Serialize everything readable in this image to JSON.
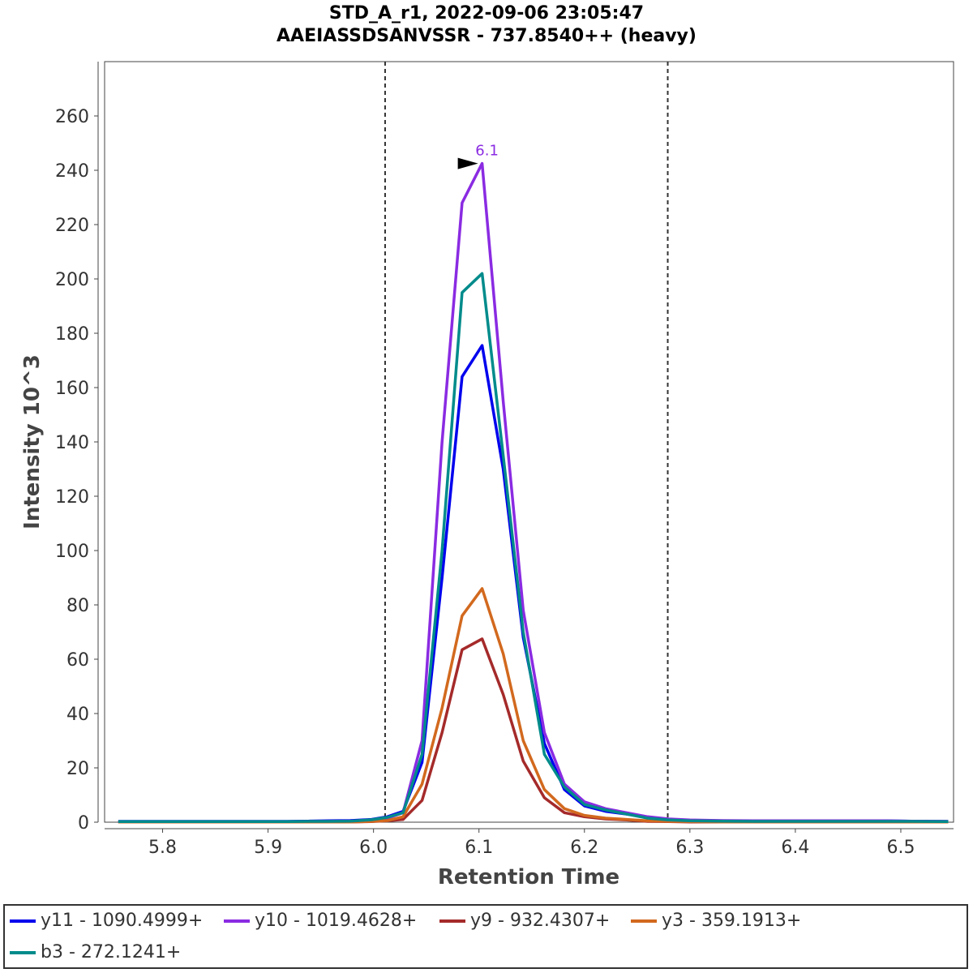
{
  "chart_data": {
    "type": "line",
    "title": "STD_A_r1, 2022-09-06 23:05:47",
    "subtitle": "AAEIASSDSANVSSR - 737.8540++ (heavy)",
    "xlabel": "Retention Time",
    "ylabel": "Intensity 10^3",
    "xlim": [
      5.745,
      6.55
    ],
    "ylim": [
      0,
      280
    ],
    "x_ticks": [
      "5.8",
      "5.9",
      "6.0",
      "6.1",
      "6.2",
      "6.3",
      "6.4",
      "6.5"
    ],
    "y_ticks": [
      "0",
      "20",
      "40",
      "60",
      "80",
      "100",
      "120",
      "140",
      "160",
      "180",
      "200",
      "220",
      "240",
      "260"
    ],
    "boundaries": [
      6.011,
      6.279
    ],
    "peak_annotation": {
      "label": "6.1",
      "x": 6.103,
      "y": 242.5
    },
    "x": [
      5.758,
      5.778,
      5.798,
      5.818,
      5.838,
      5.858,
      5.878,
      5.898,
      5.918,
      5.938,
      5.958,
      5.978,
      5.998,
      6.013,
      6.028,
      6.046,
      6.065,
      6.084,
      6.103,
      6.123,
      6.142,
      6.162,
      6.181,
      6.2,
      6.22,
      6.24,
      6.26,
      6.28,
      6.3,
      6.33,
      6.36,
      6.39,
      6.42,
      6.45,
      6.48,
      6.51,
      6.545
    ],
    "series": [
      {
        "name": "y11 - 1090.4999+",
        "color": "#0000ee",
        "values": [
          0.3,
          0.3,
          0.3,
          0.3,
          0.3,
          0.3,
          0.3,
          0.3,
          0.3,
          0.4,
          0.5,
          0.6,
          1.0,
          2.0,
          4.0,
          22,
          90,
          164,
          175.5,
          130,
          68,
          29,
          12,
          6,
          4,
          3,
          1.8,
          1.0,
          0.7,
          0.5,
          0.4,
          0.4,
          0.4,
          0.5,
          0.5,
          0.4,
          0.3
        ]
      },
      {
        "name": "y10 - 1019.4628+",
        "color": "#8a2be2",
        "values": [
          0.2,
          0.2,
          0.2,
          0.2,
          0.2,
          0.2,
          0.2,
          0.2,
          0.2,
          0.3,
          0.3,
          0.4,
          0.8,
          1.5,
          3.5,
          30,
          140,
          228,
          242.5,
          155,
          78,
          33,
          14,
          7.5,
          5,
          3.5,
          2,
          1.2,
          0.8,
          0.6,
          0.5,
          0.5,
          0.5,
          0.5,
          0.5,
          0.4,
          0.3
        ]
      },
      {
        "name": "y9 - 932.4307+",
        "color": "#a52a2a",
        "values": [
          0.1,
          0.1,
          0.1,
          0.1,
          0.1,
          0.1,
          0.1,
          0.1,
          0.1,
          0.1,
          0.1,
          0.1,
          0.2,
          0.5,
          1.0,
          8,
          33,
          63.5,
          67.5,
          47,
          22.5,
          9,
          3.5,
          2,
          1.2,
          0.8,
          0.3,
          0.2,
          0.1,
          0.1,
          0.1,
          0.1,
          0.1,
          0.1,
          0.1,
          0.1,
          0.1
        ]
      },
      {
        "name": "y3 - 359.1913+",
        "color": "#d2691e",
        "values": [
          0.1,
          0.1,
          0.1,
          0.1,
          0.1,
          0.1,
          0.1,
          0.1,
          0.1,
          0.1,
          0.1,
          0.1,
          0.3,
          0.6,
          2.0,
          14,
          42,
          76,
          86,
          62,
          30,
          12,
          5,
          2.5,
          1.5,
          1.0,
          0.5,
          0.3,
          0.2,
          0.1,
          0.1,
          0.1,
          0.1,
          0.1,
          0.1,
          0.1,
          0.1
        ]
      },
      {
        "name": "b3 - 272.1241+",
        "color": "#008b8b",
        "values": [
          0.2,
          0.2,
          0.2,
          0.2,
          0.2,
          0.2,
          0.2,
          0.2,
          0.2,
          0.3,
          0.3,
          0.4,
          0.9,
          1.8,
          3.5,
          25,
          100,
          195,
          202,
          135,
          70,
          25,
          13,
          6.5,
          4.5,
          3,
          1.5,
          0.8,
          0.5,
          0.4,
          0.3,
          0.3,
          0.3,
          0.3,
          0.3,
          0.3,
          0.2
        ]
      }
    ],
    "grid": false,
    "legend_placement": "bottom"
  }
}
